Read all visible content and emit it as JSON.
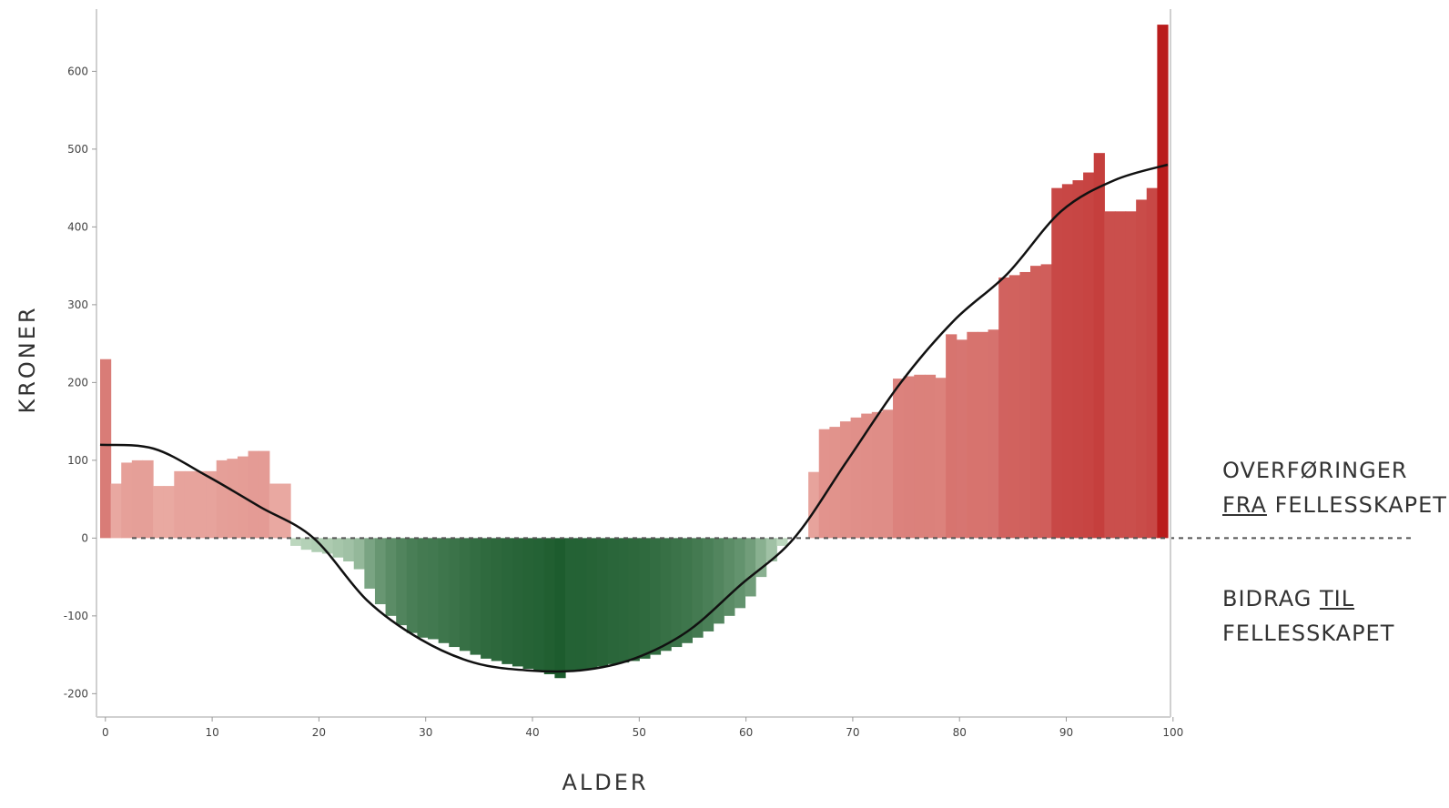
{
  "chart_data": {
    "type": "bar",
    "xlabel": "ALDER",
    "ylabel": "KRONER",
    "xlim": [
      0,
      100
    ],
    "ylim": [
      -230,
      680
    ],
    "x_ticks": [
      0,
      10,
      20,
      30,
      40,
      50,
      60,
      70,
      80,
      90,
      100
    ],
    "y_ticks": [
      600,
      500,
      400,
      300,
      200,
      100,
      0,
      -100,
      -200
    ],
    "zero_line": "dashed",
    "grid": false,
    "legend": "none",
    "colors": {
      "positive_light": "#f2c4bb",
      "positive_dark": "#b91c1c",
      "negative_light": "#d4ead4",
      "negative_dark": "#1d5c2e",
      "trend_line": "#111111"
    },
    "series": [
      {
        "ages": [
          0,
          1,
          2,
          3,
          4,
          5,
          6,
          7,
          8,
          9,
          10,
          11,
          12,
          13,
          14,
          15,
          16,
          17,
          18,
          19,
          20,
          21,
          22,
          23,
          24,
          25,
          26,
          27,
          28,
          29,
          30,
          31,
          32,
          33,
          34,
          35,
          36,
          37,
          38,
          39,
          40,
          41,
          42,
          43,
          44,
          45,
          46,
          47,
          48,
          49,
          50,
          51,
          52,
          53,
          54,
          55,
          56,
          57,
          58,
          59,
          60,
          61,
          62,
          63,
          64,
          65,
          66,
          67,
          68,
          69,
          70,
          71,
          72,
          73,
          74,
          75,
          76,
          77,
          78,
          79,
          80,
          81,
          82,
          83,
          84,
          85,
          86,
          87,
          88,
          89,
          90,
          91,
          92,
          93,
          94,
          95,
          96,
          97,
          98,
          99,
          100
        ],
        "values": [
          230,
          70,
          97,
          100,
          100,
          67,
          67,
          86,
          86,
          86,
          86,
          100,
          102,
          105,
          112,
          112,
          70,
          70,
          -10,
          -15,
          -18,
          -20,
          -25,
          -30,
          -40,
          -65,
          -85,
          -100,
          -112,
          -122,
          -128,
          -130,
          -135,
          -140,
          -145,
          -150,
          -155,
          -158,
          -162,
          -165,
          -168,
          -170,
          -175,
          -180,
          -170,
          -170,
          -168,
          -165,
          -162,
          -160,
          -158,
          -155,
          -150,
          -145,
          -140,
          -135,
          -128,
          -120,
          -110,
          -100,
          -90,
          -75,
          -50,
          -30,
          -10,
          0,
          0,
          85,
          140,
          143,
          150,
          155,
          160,
          162,
          165,
          205,
          208,
          210,
          210,
          206,
          262,
          255,
          265,
          265,
          268,
          335,
          338,
          342,
          350,
          352,
          450,
          455,
          460,
          470,
          495,
          420,
          420,
          420,
          435,
          450,
          660
        ]
      },
      {
        "name_hidden": "",
        "trend_ages": [
          0,
          5,
          10,
          15,
          20,
          25,
          30,
          35,
          40,
          45,
          50,
          55,
          60,
          65,
          70,
          75,
          80,
          85,
          90,
          95,
          100
        ],
        "trend_values": [
          120,
          115,
          80,
          40,
          0,
          -80,
          -130,
          -160,
          -170,
          -170,
          -155,
          -120,
          -60,
          0,
          100,
          200,
          280,
          340,
          420,
          460,
          480
        ]
      }
    ]
  },
  "annotations": {
    "upper_line1": "OVERFØRINGER",
    "upper_line2_underlined": "FRA",
    "upper_line2_rest": " FELLESSKAPET",
    "lower_line1_text": "BIDRAG ",
    "lower_line1_underlined": "TIL",
    "lower_line2": "FELLESSKAPET"
  }
}
